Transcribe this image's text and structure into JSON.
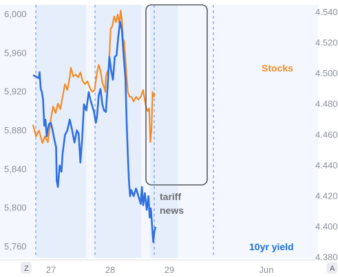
{
  "chart_data": {
    "type": "line",
    "x_ticks": [
      "27",
      "28",
      "29",
      "Jun"
    ],
    "y_left": {
      "ticks": [
        "5,760",
        "5,800",
        "5,840",
        "5,880",
        "5,920",
        "5,960",
        "6,000"
      ],
      "range": [
        5745,
        6010
      ]
    },
    "y_right": {
      "ticks": [
        "4.380",
        "4.400",
        "4.420",
        "4.440",
        "4.460",
        "4.480",
        "4.500",
        "4.520",
        "4.540"
      ],
      "range": [
        4.3775,
        4.545
      ]
    },
    "series": [
      {
        "name": "Stocks",
        "color": "#f28c28",
        "axis": "left",
        "points": [
          [
            0.0,
            5886
          ],
          [
            0.05,
            5874
          ],
          [
            0.1,
            5880
          ],
          [
            0.16,
            5867
          ],
          [
            0.2,
            5874
          ],
          [
            0.25,
            5868
          ],
          [
            0.3,
            5892
          ],
          [
            0.34,
            5905
          ],
          [
            0.38,
            5898
          ],
          [
            0.42,
            5908
          ],
          [
            0.46,
            5902
          ],
          [
            0.5,
            5915
          ],
          [
            0.54,
            5928
          ],
          [
            0.58,
            5922
          ],
          [
            0.62,
            5935
          ],
          [
            0.64,
            5945
          ],
          [
            0.68,
            5936
          ],
          [
            0.72,
            5938
          ],
          [
            0.76,
            5935
          ],
          [
            0.8,
            5940
          ],
          [
            0.84,
            5931
          ],
          [
            0.88,
            5928
          ],
          [
            0.92,
            5931
          ],
          [
            0.96,
            5924
          ],
          [
            1.0,
            5920
          ],
          [
            1.04,
            5922
          ],
          [
            1.08,
            5940
          ],
          [
            1.11,
            5948
          ],
          [
            1.14,
            5942
          ],
          [
            1.17,
            5930
          ],
          [
            1.2,
            5925
          ],
          [
            1.22,
            5920
          ],
          [
            1.23,
            5935
          ],
          [
            1.25,
            5940
          ],
          [
            1.28,
            5944
          ],
          [
            1.31,
            5985
          ],
          [
            1.34,
            5988
          ],
          [
            1.37,
            5998
          ],
          [
            1.4,
            5992
          ],
          [
            1.43,
            6000
          ],
          [
            1.46,
            5990
          ],
          [
            1.48,
            6004
          ],
          [
            1.5,
            5995
          ],
          [
            1.52,
            5975
          ],
          [
            1.54,
            5972
          ],
          [
            1.57,
            5945
          ],
          [
            1.6,
            5920
          ],
          [
            1.63,
            5915
          ],
          [
            1.66,
            5915
          ],
          [
            1.7,
            5910
          ],
          [
            1.74,
            5915
          ],
          [
            1.78,
            5912
          ],
          [
            1.82,
            5915
          ],
          [
            1.86,
            5922
          ],
          [
            1.88,
            5914
          ],
          [
            1.91,
            5904
          ],
          [
            1.94,
            5900
          ],
          [
            1.96,
            5903
          ],
          [
            1.98,
            5868
          ],
          [
            2.0,
            5880
          ],
          [
            2.02,
            5920
          ],
          [
            2.04,
            5915
          ],
          [
            2.06,
            5918
          ]
        ]
      },
      {
        "name": "10yr yield",
        "color": "#2f6fe0",
        "axis": "right",
        "points": [
          [
            0.0,
            4.499
          ],
          [
            0.06,
            4.498
          ],
          [
            0.1,
            4.497
          ],
          [
            0.11,
            4.501
          ],
          [
            0.13,
            4.49
          ],
          [
            0.15,
            4.488
          ],
          [
            0.17,
            4.483
          ],
          [
            0.19,
            4.466
          ],
          [
            0.21,
            4.47
          ],
          [
            0.23,
            4.459
          ],
          [
            0.25,
            4.464
          ],
          [
            0.27,
            4.467
          ],
          [
            0.3,
            4.468
          ],
          [
            0.33,
            4.463
          ],
          [
            0.36,
            4.457
          ],
          [
            0.39,
            4.452
          ],
          [
            0.4,
            4.43
          ],
          [
            0.42,
            4.426
          ],
          [
            0.45,
            4.44
          ],
          [
            0.48,
            4.436
          ],
          [
            0.5,
            4.448
          ],
          [
            0.54,
            4.46
          ],
          [
            0.58,
            4.463
          ],
          [
            0.62,
            4.47
          ],
          [
            0.66,
            4.463
          ],
          [
            0.7,
            4.455
          ],
          [
            0.74,
            4.463
          ],
          [
            0.77,
            4.461
          ],
          [
            0.8,
            4.442
          ],
          [
            0.83,
            4.458
          ],
          [
            0.86,
            4.48
          ],
          [
            0.9,
            4.476
          ],
          [
            0.94,
            4.488
          ],
          [
            0.97,
            4.483
          ],
          [
            1.0,
            4.479
          ],
          [
            1.03,
            4.475
          ],
          [
            1.06,
            4.468
          ],
          [
            1.08,
            4.472
          ],
          [
            1.11,
            4.486
          ],
          [
            1.14,
            4.49
          ],
          [
            1.17,
            4.48
          ],
          [
            1.2,
            4.476
          ],
          [
            1.23,
            4.475
          ],
          [
            1.26,
            4.492
          ],
          [
            1.29,
            4.511
          ],
          [
            1.32,
            4.502
          ],
          [
            1.35,
            4.496
          ],
          [
            1.38,
            4.511
          ],
          [
            1.41,
            4.512
          ],
          [
            1.44,
            4.524
          ],
          [
            1.47,
            4.534
          ],
          [
            1.5,
            4.529
          ],
          [
            1.53,
            4.512
          ],
          [
            1.56,
            4.497
          ],
          [
            1.58,
            4.47
          ],
          [
            1.6,
            4.448
          ],
          [
            1.62,
            4.43
          ],
          [
            1.64,
            4.42
          ],
          [
            1.66,
            4.424
          ],
          [
            1.7,
            4.42
          ],
          [
            1.74,
            4.425
          ],
          [
            1.78,
            4.42
          ],
          [
            1.82,
            4.415
          ],
          [
            1.84,
            4.426
          ],
          [
            1.86,
            4.414
          ],
          [
            1.89,
            4.422
          ],
          [
            1.92,
            4.411
          ],
          [
            1.95,
            4.42
          ],
          [
            1.97,
            4.406
          ],
          [
            1.99,
            4.412
          ],
          [
            2.01,
            4.401
          ],
          [
            2.03,
            4.39
          ],
          [
            2.05,
            4.397
          ],
          [
            2.07,
            4.4
          ]
        ]
      }
    ],
    "shaded_sessions": [
      [
        0.0,
        0.85
      ],
      [
        1.0,
        1.78
      ],
      [
        1.93,
        2.4
      ]
    ],
    "vertical_dashes": [
      0.03,
      1.47
    ],
    "labels": {
      "stocks": "Stocks",
      "yield": "10yr yield"
    },
    "annotation": {
      "text_line1": "tariff",
      "text_line2": "news",
      "x_range": [
        1.28,
        1.66
      ]
    }
  },
  "controls": {
    "left": "Z",
    "right": "A"
  },
  "colors": {
    "stocks": "#f28c28",
    "yield": "#2f6fe0",
    "shade": "#e6eefb",
    "box": "#555b63"
  }
}
